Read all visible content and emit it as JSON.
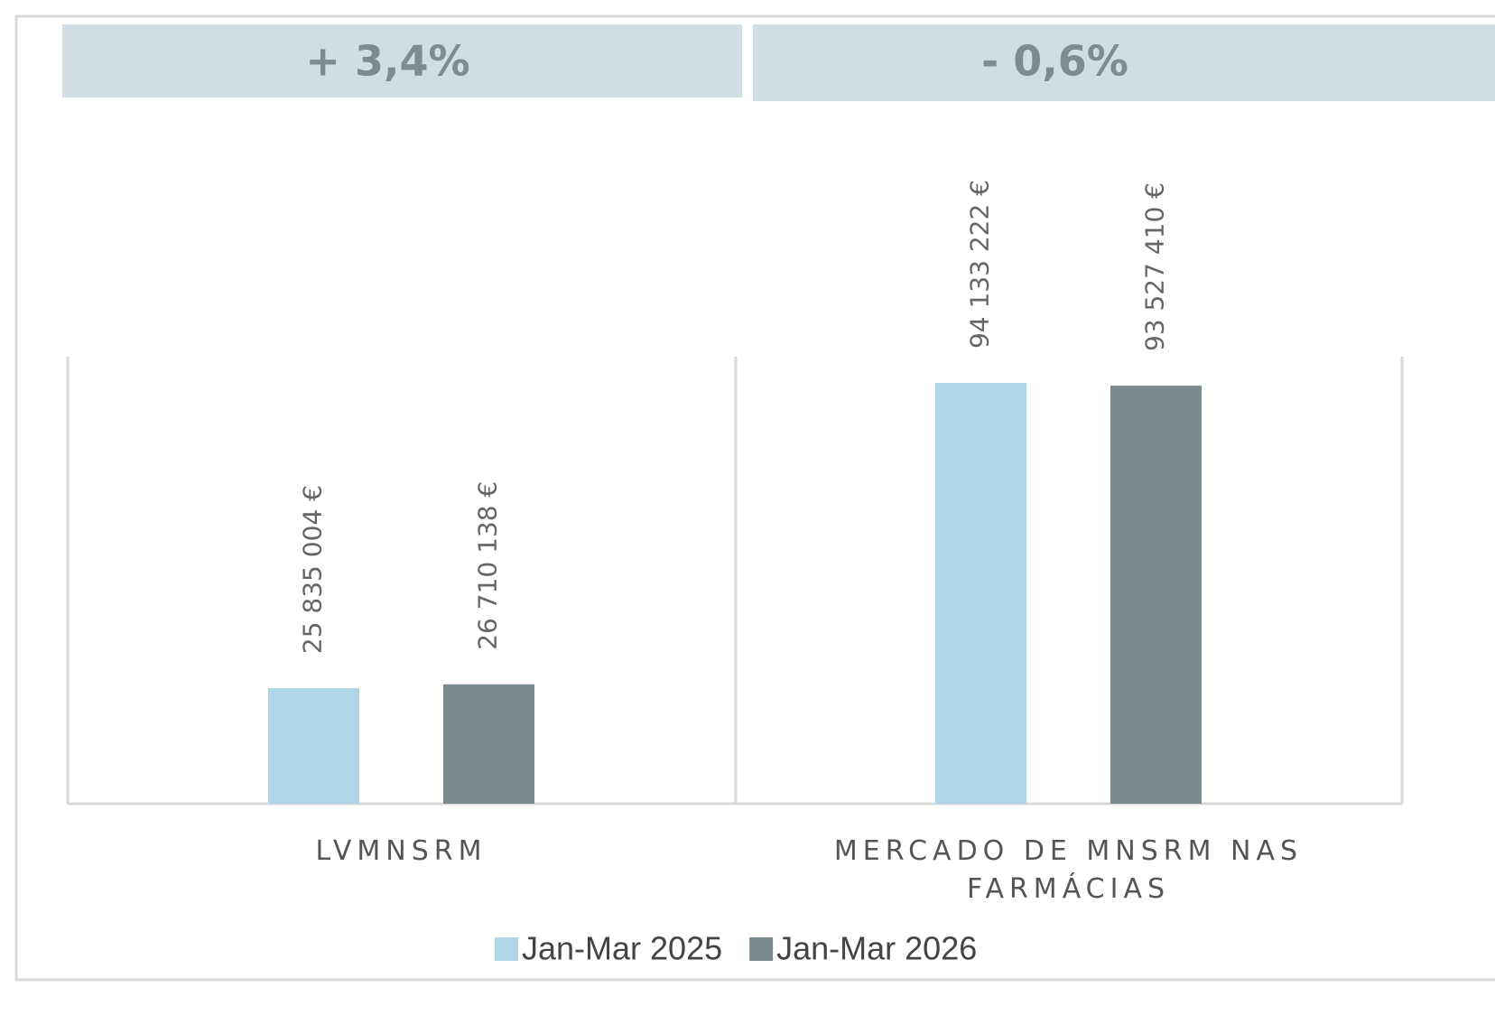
{
  "chart_data": {
    "type": "bar",
    "annotations": [
      "+ 3,4%",
      "- 0,6%"
    ],
    "categories": [
      "LVMNSRM",
      "MERCADO DE MNSRM NAS FARMÁCIAS"
    ],
    "series": [
      {
        "name": "Jan-Mar 2025",
        "color": "#aed6e6",
        "values": [
          25835004,
          94133222
        ],
        "value_labels": [
          "25 835 004 €",
          "94 133 222 €"
        ]
      },
      {
        "name": "Jan-Mar 2026",
        "color": "#7b8b8e",
        "values": [
          26710138,
          93527410
        ],
        "value_labels": [
          "26 710 138 €",
          "93 527 410 €"
        ]
      }
    ],
    "ylim": [
      0,
      100000000
    ],
    "legend": "bottom"
  }
}
